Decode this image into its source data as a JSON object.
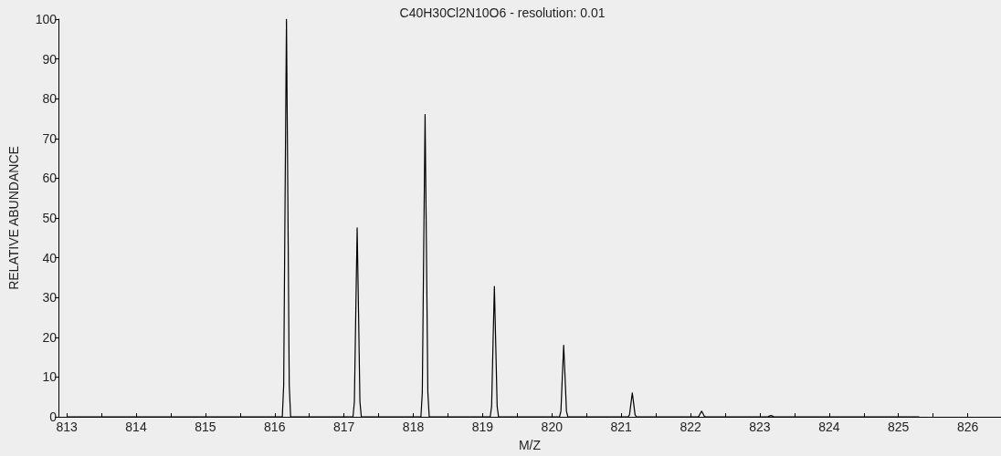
{
  "chart_data": {
    "type": "line",
    "title": "C40H30Cl2N10O6 - resolution: 0.01",
    "xlabel": "M/Z",
    "ylabel": "RELATIVE ABUNDANCE",
    "series": [
      {
        "color": "#000000",
        "x": [
          813,
          816.11,
          816.13,
          816.15,
          816.17,
          816.19,
          816.21,
          816.23,
          817.13,
          817.15,
          817.17,
          817.19,
          817.21,
          817.23,
          817.25,
          818.11,
          818.13,
          818.15,
          818.17,
          818.19,
          818.21,
          818.23,
          819.11,
          819.13,
          819.15,
          819.17,
          819.19,
          819.21,
          819.23,
          820.11,
          820.13,
          820.15,
          820.17,
          820.19,
          820.21,
          820.23,
          821.1,
          821.12,
          821.14,
          821.16,
          821.18,
          821.2,
          821.22,
          822.1,
          822.12,
          822.14,
          822.16,
          822.18,
          822.2,
          822.22,
          823.1,
          823.12,
          823.14,
          823.16,
          823.18,
          823.2,
          823.22,
          825.3
        ],
        "values": [
          0,
          0,
          8,
          55,
          100,
          55,
          8,
          0,
          0,
          3.8,
          26.1,
          47.5,
          26.1,
          3.8,
          0,
          0,
          6.1,
          41.8,
          76,
          41.8,
          6.1,
          0,
          0,
          2.6,
          18,
          32.8,
          18,
          2.6,
          0,
          0,
          1.4,
          9.9,
          18,
          9.9,
          1.4,
          0,
          0,
          0.5,
          3.3,
          6,
          3.3,
          0.5,
          0,
          0,
          0.1,
          0.8,
          1.4,
          0.8,
          0.1,
          0,
          0,
          0,
          0.2,
          0.3,
          0.2,
          0,
          0,
          0
        ]
      }
    ],
    "xlim": [
      812.88,
      826.48
    ],
    "xticks": [
      813,
      {
        "value": 813.5,
        "label": null
      },
      814,
      {
        "value": 814.5,
        "label": null
      },
      815,
      {
        "value": 815.5,
        "label": null
      },
      816,
      {
        "value": 816.5,
        "label": null
      },
      817,
      {
        "value": 817.5,
        "label": null
      },
      818,
      {
        "value": 818.5,
        "label": null
      },
      819,
      {
        "value": 819.5,
        "label": null
      },
      820,
      {
        "value": 820.5,
        "label": null
      },
      821,
      {
        "value": 821.5,
        "label": null
      },
      822,
      {
        "value": 822.5,
        "label": null
      },
      823,
      {
        "value": 823.5,
        "label": null
      },
      824,
      {
        "value": 824.5,
        "label": null
      },
      825,
      {
        "value": 825.5,
        "label": null
      },
      826
    ],
    "ylim": [
      0,
      100
    ],
    "yticks": [
      0,
      10,
      20,
      30,
      40,
      50,
      60,
      70,
      80,
      90,
      100
    ],
    "grid": false,
    "marker": "none",
    "line_style": "solid"
  }
}
